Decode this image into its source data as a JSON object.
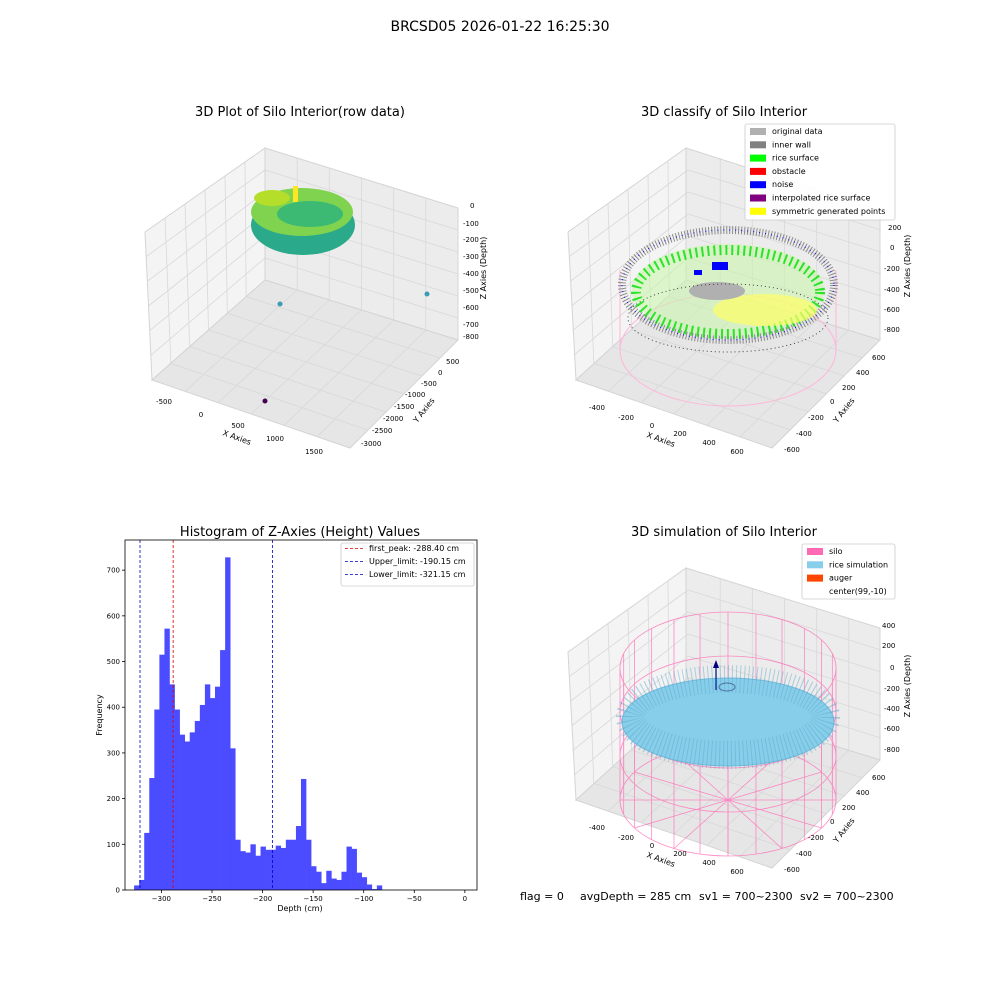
{
  "figure": {
    "suptitle": "BRCSD05 2026-01-22 16:25:30",
    "status_line": {
      "flag": "flag = 0",
      "avg_depth": "avgDepth = 285 cm",
      "sv1": "sv1 = 700~2300",
      "sv2": "sv2 = 700~2300"
    }
  },
  "colors": {
    "histogram_bar": "#4b4bff",
    "peak_line": "#e00000",
    "limit_line": "#0000cc",
    "original_data": "#b0b0b0",
    "inner_wall": "#808080",
    "rice_surface": "#00ff00",
    "obstacle": "#ff0000",
    "noise": "#0000ff",
    "interpolated_rice_surface": "#800080",
    "symmetric_generated_points": "#ffff00",
    "silo": "#ff69b4",
    "rice_simulation": "#87ceeb",
    "auger": "#ff4500"
  },
  "chart_data": [
    {
      "type": "scatter",
      "projection": "3d",
      "title": "3D Plot of Silo Interior(row data)",
      "xlabel": "X Axies",
      "ylabel": "Y Axies",
      "zlabel": "Z Axies (Depth)",
      "xticks": [
        "-500",
        "0",
        "500",
        "1000",
        "1500"
      ],
      "yticks": [
        "500",
        "0",
        "-500",
        "-1000",
        "-1500",
        "-2000",
        "-2500",
        "-3000"
      ],
      "zticks": [
        "0",
        "-100",
        "-200",
        "-300",
        "-400",
        "-500",
        "-600",
        "-700",
        "-800"
      ],
      "colormap": "viridis",
      "grid": true
    },
    {
      "type": "scatter",
      "projection": "3d",
      "title": "3D classify of Silo Interior",
      "xlabel": "X Axies",
      "ylabel": "Y Axies",
      "zlabel": "Z Axies (Depth)",
      "xticks": [
        "-400",
        "-200",
        "0",
        "200",
        "400",
        "600"
      ],
      "yticks": [
        "600",
        "400",
        "200",
        "0",
        "-200",
        "-400",
        "-600"
      ],
      "zticks": [
        "200",
        "0",
        "-200",
        "-400",
        "-600",
        "-800"
      ],
      "legend_position": "top-right",
      "legend": [
        {
          "label": "original data",
          "color": "#b0b0b0"
        },
        {
          "label": "inner wall",
          "color": "#808080"
        },
        {
          "label": "rice surface",
          "color": "#00ff00"
        },
        {
          "label": "obstacle",
          "color": "#ff0000"
        },
        {
          "label": "noise",
          "color": "#0000ff"
        },
        {
          "label": "interpolated rice surface",
          "color": "#800080"
        },
        {
          "label": "symmetric generated points",
          "color": "#ffff00"
        }
      ],
      "grid": true
    },
    {
      "type": "bar",
      "title": "Histogram of Z-Axies (Height) Values",
      "xlabel": "Depth (cm)",
      "ylabel": "Frequency",
      "xlim": [
        -336,
        12
      ],
      "ylim": [
        0,
        766
      ],
      "xticks": [
        -300,
        -250,
        -200,
        -150,
        -100,
        -50,
        0
      ],
      "yticks": [
        0,
        100,
        200,
        300,
        400,
        500,
        600,
        700
      ],
      "bin_start": -327,
      "bin_width": 5,
      "values": [
        10,
        22,
        125,
        245,
        395,
        515,
        572,
        450,
        395,
        340,
        325,
        345,
        370,
        405,
        450,
        420,
        445,
        525,
        728,
        310,
        110,
        85,
        82,
        100,
        75,
        95,
        88,
        88,
        97,
        92,
        110,
        110,
        140,
        243,
        110,
        52,
        40,
        15,
        42,
        25,
        22,
        40,
        95,
        90,
        38,
        28,
        12,
        2,
        10
      ],
      "vlines": [
        {
          "x": -288.4,
          "label": "first_peak: -288.40 cm",
          "color": "#e00000"
        },
        {
          "x": -190.15,
          "label": "Upper_limit: -190.15 cm",
          "color": "#0000cc"
        },
        {
          "x": -321.15,
          "label": "Lower_limit: -321.15 cm",
          "color": "#0000cc"
        }
      ],
      "legend_position": "top-right",
      "grid": false
    },
    {
      "type": "surface",
      "projection": "3d",
      "title": "3D simulation of Silo Interior",
      "xlabel": "X Axies",
      "ylabel": "Y Axies",
      "zlabel": "Z Axies (Depth)",
      "xticks": [
        "-400",
        "-200",
        "0",
        "200",
        "400",
        "600"
      ],
      "yticks": [
        "600",
        "400",
        "200",
        "0",
        "-200",
        "-400",
        "-600"
      ],
      "zticks": [
        "400",
        "200",
        "0",
        "-200",
        "-400",
        "-600",
        "-800"
      ],
      "legend_position": "top-right",
      "legend": [
        {
          "label": "silo",
          "color": "#ff69b4"
        },
        {
          "label": "rice simulation",
          "color": "#87ceeb"
        },
        {
          "label": "auger",
          "color": "#ff4500"
        },
        {
          "label": "center(99,-10)",
          "color": ""
        }
      ],
      "grid": true
    }
  ]
}
